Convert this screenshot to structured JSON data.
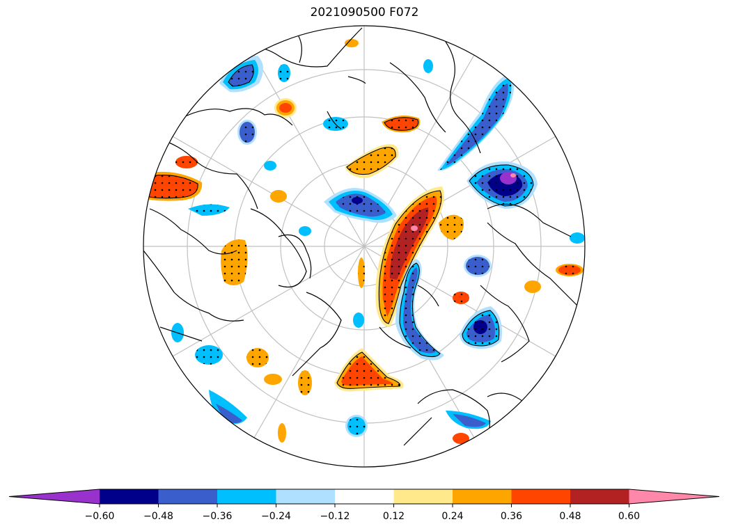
{
  "title": "2021090500 F072",
  "projection": "north-polar-stereographic",
  "graticule": {
    "latitudes_deg": [
      40,
      50,
      60,
      70,
      80
    ],
    "meridian_step_deg": 30,
    "color": "#c0c0c0"
  },
  "stippling": "significant areas marked with dots",
  "colorbar": {
    "extend": "both",
    "levels": [
      -0.6,
      -0.48,
      -0.36,
      -0.24,
      -0.12,
      0.12,
      0.24,
      0.36,
      0.48,
      0.6
    ],
    "tick_labels": [
      "−0.60",
      "−0.48",
      "−0.36",
      "−0.24",
      "−0.12",
      "0.12",
      "0.24",
      "0.36",
      "0.48",
      "0.60"
    ],
    "colors": [
      "#9932cc",
      "#00008b",
      "#3a5fcd",
      "#00bfff",
      "#b0e0ff",
      "#ffffff",
      "#ffe98a",
      "#ffa500",
      "#ff4500",
      "#b22222",
      "#ff88aa"
    ]
  }
}
